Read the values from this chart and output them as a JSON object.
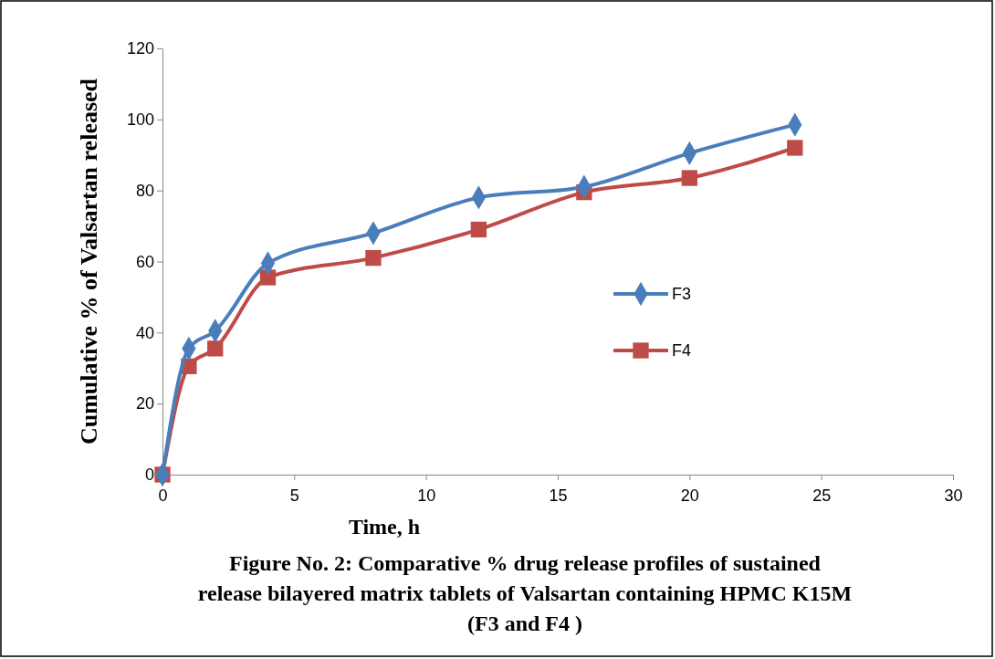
{
  "chart_data": {
    "type": "line",
    "title": "Figure No. 2: Comparative % drug release profiles of sustained release bilayered matrix tablets of Valsartan containing HPMC K15M (F3 and F4 )",
    "xlabel": "Time, h",
    "ylabel": "Cumulative % of  Valsartan released",
    "x": [
      0,
      1,
      2,
      4,
      8,
      12,
      16,
      20,
      24
    ],
    "series": [
      {
        "name": "F3",
        "color": "#4a7ebb",
        "marker": "diamond",
        "values": [
          0,
          35.5,
          40.5,
          59.5,
          68,
          78,
          81,
          90.5,
          98.5
        ]
      },
      {
        "name": "F4",
        "color": "#be4b48",
        "marker": "square",
        "values": [
          0,
          30.5,
          35.5,
          55.5,
          61,
          69,
          79.5,
          83.5,
          92
        ]
      }
    ],
    "xlim": [
      0,
      30
    ],
    "xticks": [
      0,
      5,
      10,
      15,
      20,
      25,
      30
    ],
    "ylim": [
      0,
      120
    ],
    "yticks": [
      0,
      20,
      40,
      60,
      80,
      100,
      120
    ],
    "grid": false,
    "legend": "right"
  }
}
